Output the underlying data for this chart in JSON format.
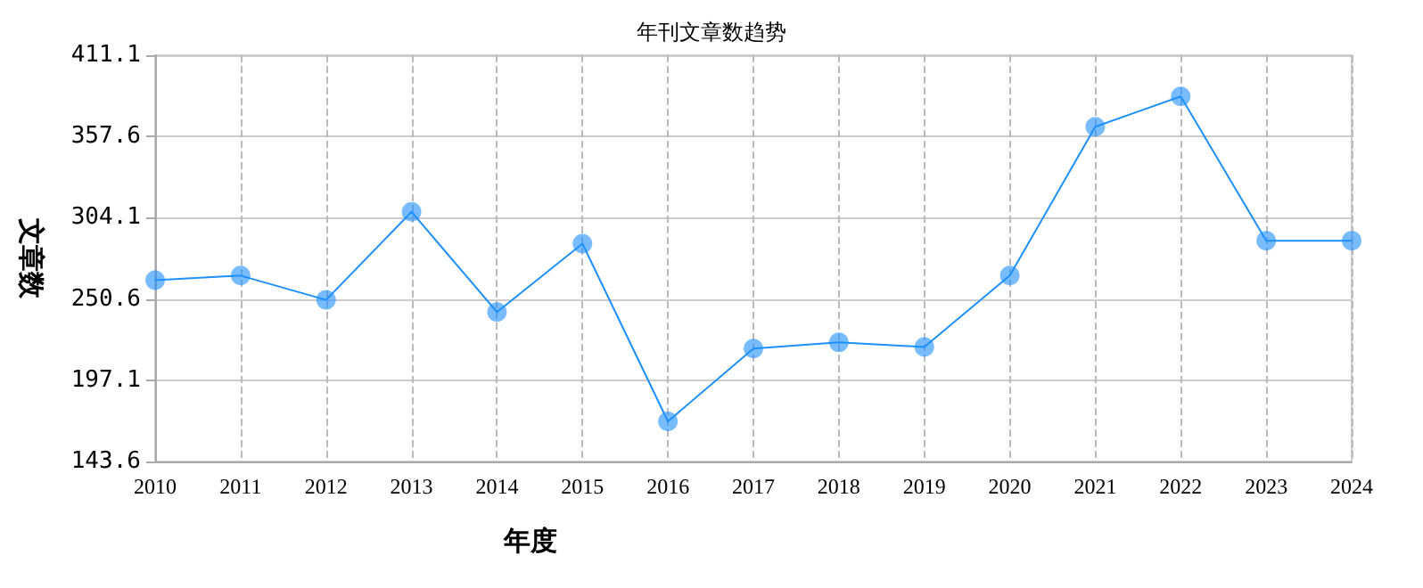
{
  "chart_data": {
    "type": "line",
    "title": "年刊文章数趋势",
    "xlabel": "年度",
    "ylabel": "文章数",
    "categories": [
      "2010",
      "2011",
      "2012",
      "2013",
      "2014",
      "2015",
      "2016",
      "2017",
      "2018",
      "2019",
      "2020",
      "2021",
      "2022",
      "2023",
      "2024"
    ],
    "series": [
      {
        "color": "#1e90ff",
        "values": [
          263,
          266,
          250,
          308,
          242,
          287,
          170,
          218,
          222,
          219,
          266,
          364,
          384,
          289,
          289
        ]
      }
    ],
    "ylim": [
      143.6,
      411.1
    ],
    "yticks": [
      143.6,
      197.1,
      250.6,
      304.1,
      357.6,
      411.1
    ],
    "grid": true,
    "marker": "circle",
    "line_style": "solid"
  }
}
